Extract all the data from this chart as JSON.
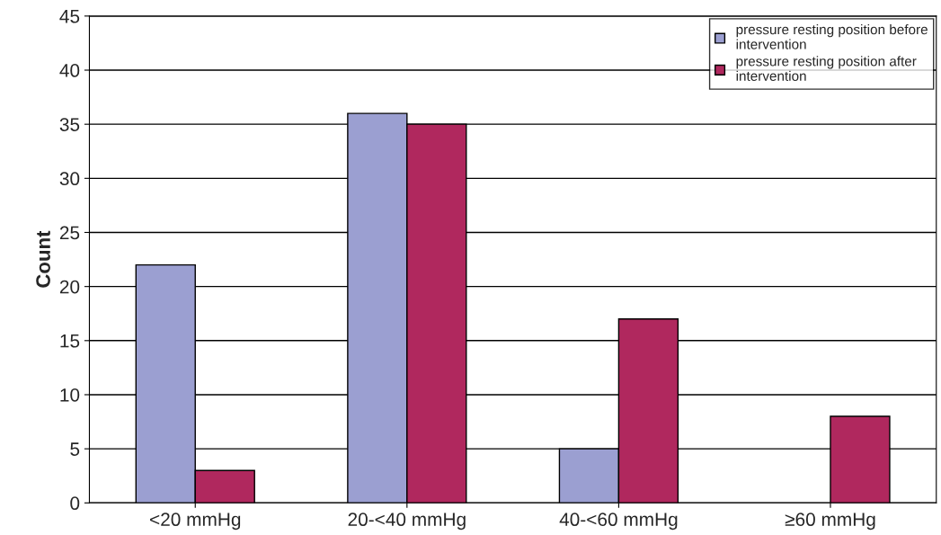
{
  "chart_data": {
    "type": "bar",
    "ylabel": "Count",
    "categories": [
      "<20 mmHg",
      "20-<40 mmHg",
      "40-<60 mmHg",
      "≥60 mmHg"
    ],
    "series": [
      {
        "name": "pressure resting position before\nintervention",
        "color": "#9b9fd1",
        "values": [
          22,
          36,
          5,
          null
        ]
      },
      {
        "name": "pressure resting position after\nintervention",
        "color": "#b0285e",
        "values": [
          3,
          35,
          17,
          8
        ]
      }
    ],
    "ylim": [
      0,
      45
    ],
    "yticks": [
      0,
      5,
      10,
      15,
      20,
      25,
      30,
      35,
      40,
      45
    ],
    "grid": "y",
    "legend": "top right"
  }
}
